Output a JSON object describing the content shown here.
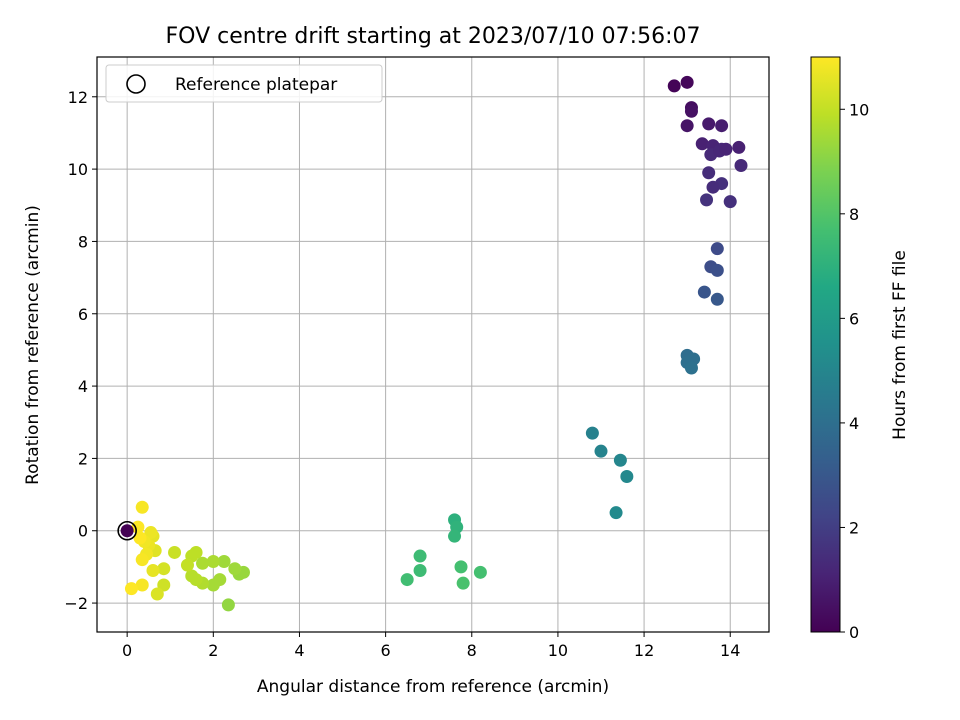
{
  "chart_data": {
    "type": "scatter",
    "title": "FOV centre drift starting at 2023/07/10 07:56:07",
    "xlabel": "Angular distance from reference (arcmin)",
    "ylabel": "Rotation from reference (arcmin)",
    "xlim": [
      -0.7,
      14.9
    ],
    "ylim": [
      -2.8,
      13.1
    ],
    "xticks": [
      0,
      2,
      4,
      6,
      8,
      10,
      12,
      14
    ],
    "yticks": [
      -2,
      0,
      2,
      4,
      6,
      8,
      10,
      12
    ],
    "grid": true,
    "legend": {
      "location": "upper-left",
      "entries": [
        "Reference platepar"
      ]
    },
    "colorbar": {
      "label": "Hours from first FF file",
      "colormap": "viridis",
      "range": [
        0,
        11
      ],
      "ticks": [
        0,
        2,
        4,
        6,
        8,
        10
      ]
    },
    "reference_point": {
      "x": 0,
      "y": 0
    },
    "series": [
      {
        "points": [
          {
            "x": 12.7,
            "y": 12.3,
            "c": 0.1
          },
          {
            "x": 13.0,
            "y": 12.4,
            "c": 0.2
          },
          {
            "x": 13.1,
            "y": 11.7,
            "c": 0.4
          },
          {
            "x": 13.1,
            "y": 11.6,
            "c": 0.5
          },
          {
            "x": 13.0,
            "y": 11.2,
            "c": 0.6
          },
          {
            "x": 13.5,
            "y": 11.25,
            "c": 0.8
          },
          {
            "x": 13.8,
            "y": 11.2,
            "c": 0.9
          },
          {
            "x": 13.35,
            "y": 10.7,
            "c": 1.0
          },
          {
            "x": 13.6,
            "y": 10.65,
            "c": 1.1
          },
          {
            "x": 13.8,
            "y": 10.55,
            "c": 1.2
          },
          {
            "x": 14.2,
            "y": 10.6,
            "c": 1.0
          },
          {
            "x": 13.55,
            "y": 10.4,
            "c": 1.3
          },
          {
            "x": 13.75,
            "y": 10.5,
            "c": 1.2
          },
          {
            "x": 13.9,
            "y": 10.55,
            "c": 1.1
          },
          {
            "x": 14.25,
            "y": 10.1,
            "c": 1.3
          },
          {
            "x": 13.5,
            "y": 9.9,
            "c": 1.4
          },
          {
            "x": 13.8,
            "y": 9.6,
            "c": 1.5
          },
          {
            "x": 13.6,
            "y": 9.5,
            "c": 1.4
          },
          {
            "x": 13.45,
            "y": 9.15,
            "c": 1.6
          },
          {
            "x": 14.0,
            "y": 9.1,
            "c": 1.5
          },
          {
            "x": 13.7,
            "y": 7.8,
            "c": 2.5
          },
          {
            "x": 13.55,
            "y": 7.3,
            "c": 2.6
          },
          {
            "x": 13.7,
            "y": 7.2,
            "c": 2.7
          },
          {
            "x": 13.4,
            "y": 6.6,
            "c": 2.9
          },
          {
            "x": 13.7,
            "y": 6.4,
            "c": 3.0
          },
          {
            "x": 13.0,
            "y": 4.85,
            "c": 3.9
          },
          {
            "x": 13.15,
            "y": 4.75,
            "c": 4.0
          },
          {
            "x": 13.0,
            "y": 4.65,
            "c": 4.0
          },
          {
            "x": 13.1,
            "y": 4.5,
            "c": 4.1
          },
          {
            "x": 10.8,
            "y": 2.7,
            "c": 4.8
          },
          {
            "x": 11.0,
            "y": 2.2,
            "c": 4.9
          },
          {
            "x": 11.45,
            "y": 1.95,
            "c": 5.0
          },
          {
            "x": 11.6,
            "y": 1.5,
            "c": 5.1
          },
          {
            "x": 11.35,
            "y": 0.5,
            "c": 5.2
          },
          {
            "x": 7.6,
            "y": 0.3,
            "c": 7.0
          },
          {
            "x": 7.65,
            "y": 0.1,
            "c": 7.1
          },
          {
            "x": 7.6,
            "y": -0.15,
            "c": 7.2
          },
          {
            "x": 6.8,
            "y": -0.7,
            "c": 7.5
          },
          {
            "x": 6.8,
            "y": -1.1,
            "c": 7.5
          },
          {
            "x": 6.5,
            "y": -1.35,
            "c": 7.6
          },
          {
            "x": 7.75,
            "y": -1.0,
            "c": 7.7
          },
          {
            "x": 8.2,
            "y": -1.15,
            "c": 7.7
          },
          {
            "x": 7.8,
            "y": -1.45,
            "c": 7.8
          },
          {
            "x": 2.35,
            "y": -2.05,
            "c": 9.2
          },
          {
            "x": 2.7,
            "y": -1.15,
            "c": 9.3
          },
          {
            "x": 2.6,
            "y": -1.2,
            "c": 9.3
          },
          {
            "x": 2.5,
            "y": -1.05,
            "c": 9.4
          },
          {
            "x": 2.25,
            "y": -0.85,
            "c": 9.4
          },
          {
            "x": 2.15,
            "y": -1.35,
            "c": 9.5
          },
          {
            "x": 2.0,
            "y": -1.5,
            "c": 9.5
          },
          {
            "x": 2.0,
            "y": -0.85,
            "c": 9.6
          },
          {
            "x": 1.75,
            "y": -0.9,
            "c": 9.6
          },
          {
            "x": 1.75,
            "y": -1.45,
            "c": 9.7
          },
          {
            "x": 1.6,
            "y": -1.35,
            "c": 9.8
          },
          {
            "x": 1.5,
            "y": -1.25,
            "c": 9.8
          },
          {
            "x": 1.6,
            "y": -0.6,
            "c": 9.9
          },
          {
            "x": 1.5,
            "y": -0.7,
            "c": 9.9
          },
          {
            "x": 1.4,
            "y": -0.95,
            "c": 10.0
          },
          {
            "x": 1.1,
            "y": -0.6,
            "c": 10.1
          },
          {
            "x": 0.85,
            "y": -1.5,
            "c": 10.2
          },
          {
            "x": 0.85,
            "y": -1.05,
            "c": 10.3
          },
          {
            "x": 0.7,
            "y": -1.75,
            "c": 10.4
          },
          {
            "x": 0.65,
            "y": -0.55,
            "c": 10.5
          },
          {
            "x": 0.6,
            "y": -0.15,
            "c": 10.6
          },
          {
            "x": 0.6,
            "y": -1.1,
            "c": 10.6
          },
          {
            "x": 0.55,
            "y": -0.05,
            "c": 10.7
          },
          {
            "x": 0.5,
            "y": -0.4,
            "c": 10.7
          },
          {
            "x": 0.45,
            "y": -0.65,
            "c": 10.8
          },
          {
            "x": 0.4,
            "y": -0.3,
            "c": 10.8
          },
          {
            "x": 0.35,
            "y": 0.65,
            "c": 10.9
          },
          {
            "x": 0.35,
            "y": -0.8,
            "c": 10.9
          },
          {
            "x": 0.35,
            "y": -1.5,
            "c": 10.9
          },
          {
            "x": 0.25,
            "y": 0.1,
            "c": 11.0
          },
          {
            "x": 0.3,
            "y": -0.2,
            "c": 11.0
          },
          {
            "x": 0.1,
            "y": -1.6,
            "c": 11.0
          },
          {
            "x": 0.0,
            "y": 0.0,
            "c": 0.0
          }
        ]
      }
    ]
  }
}
